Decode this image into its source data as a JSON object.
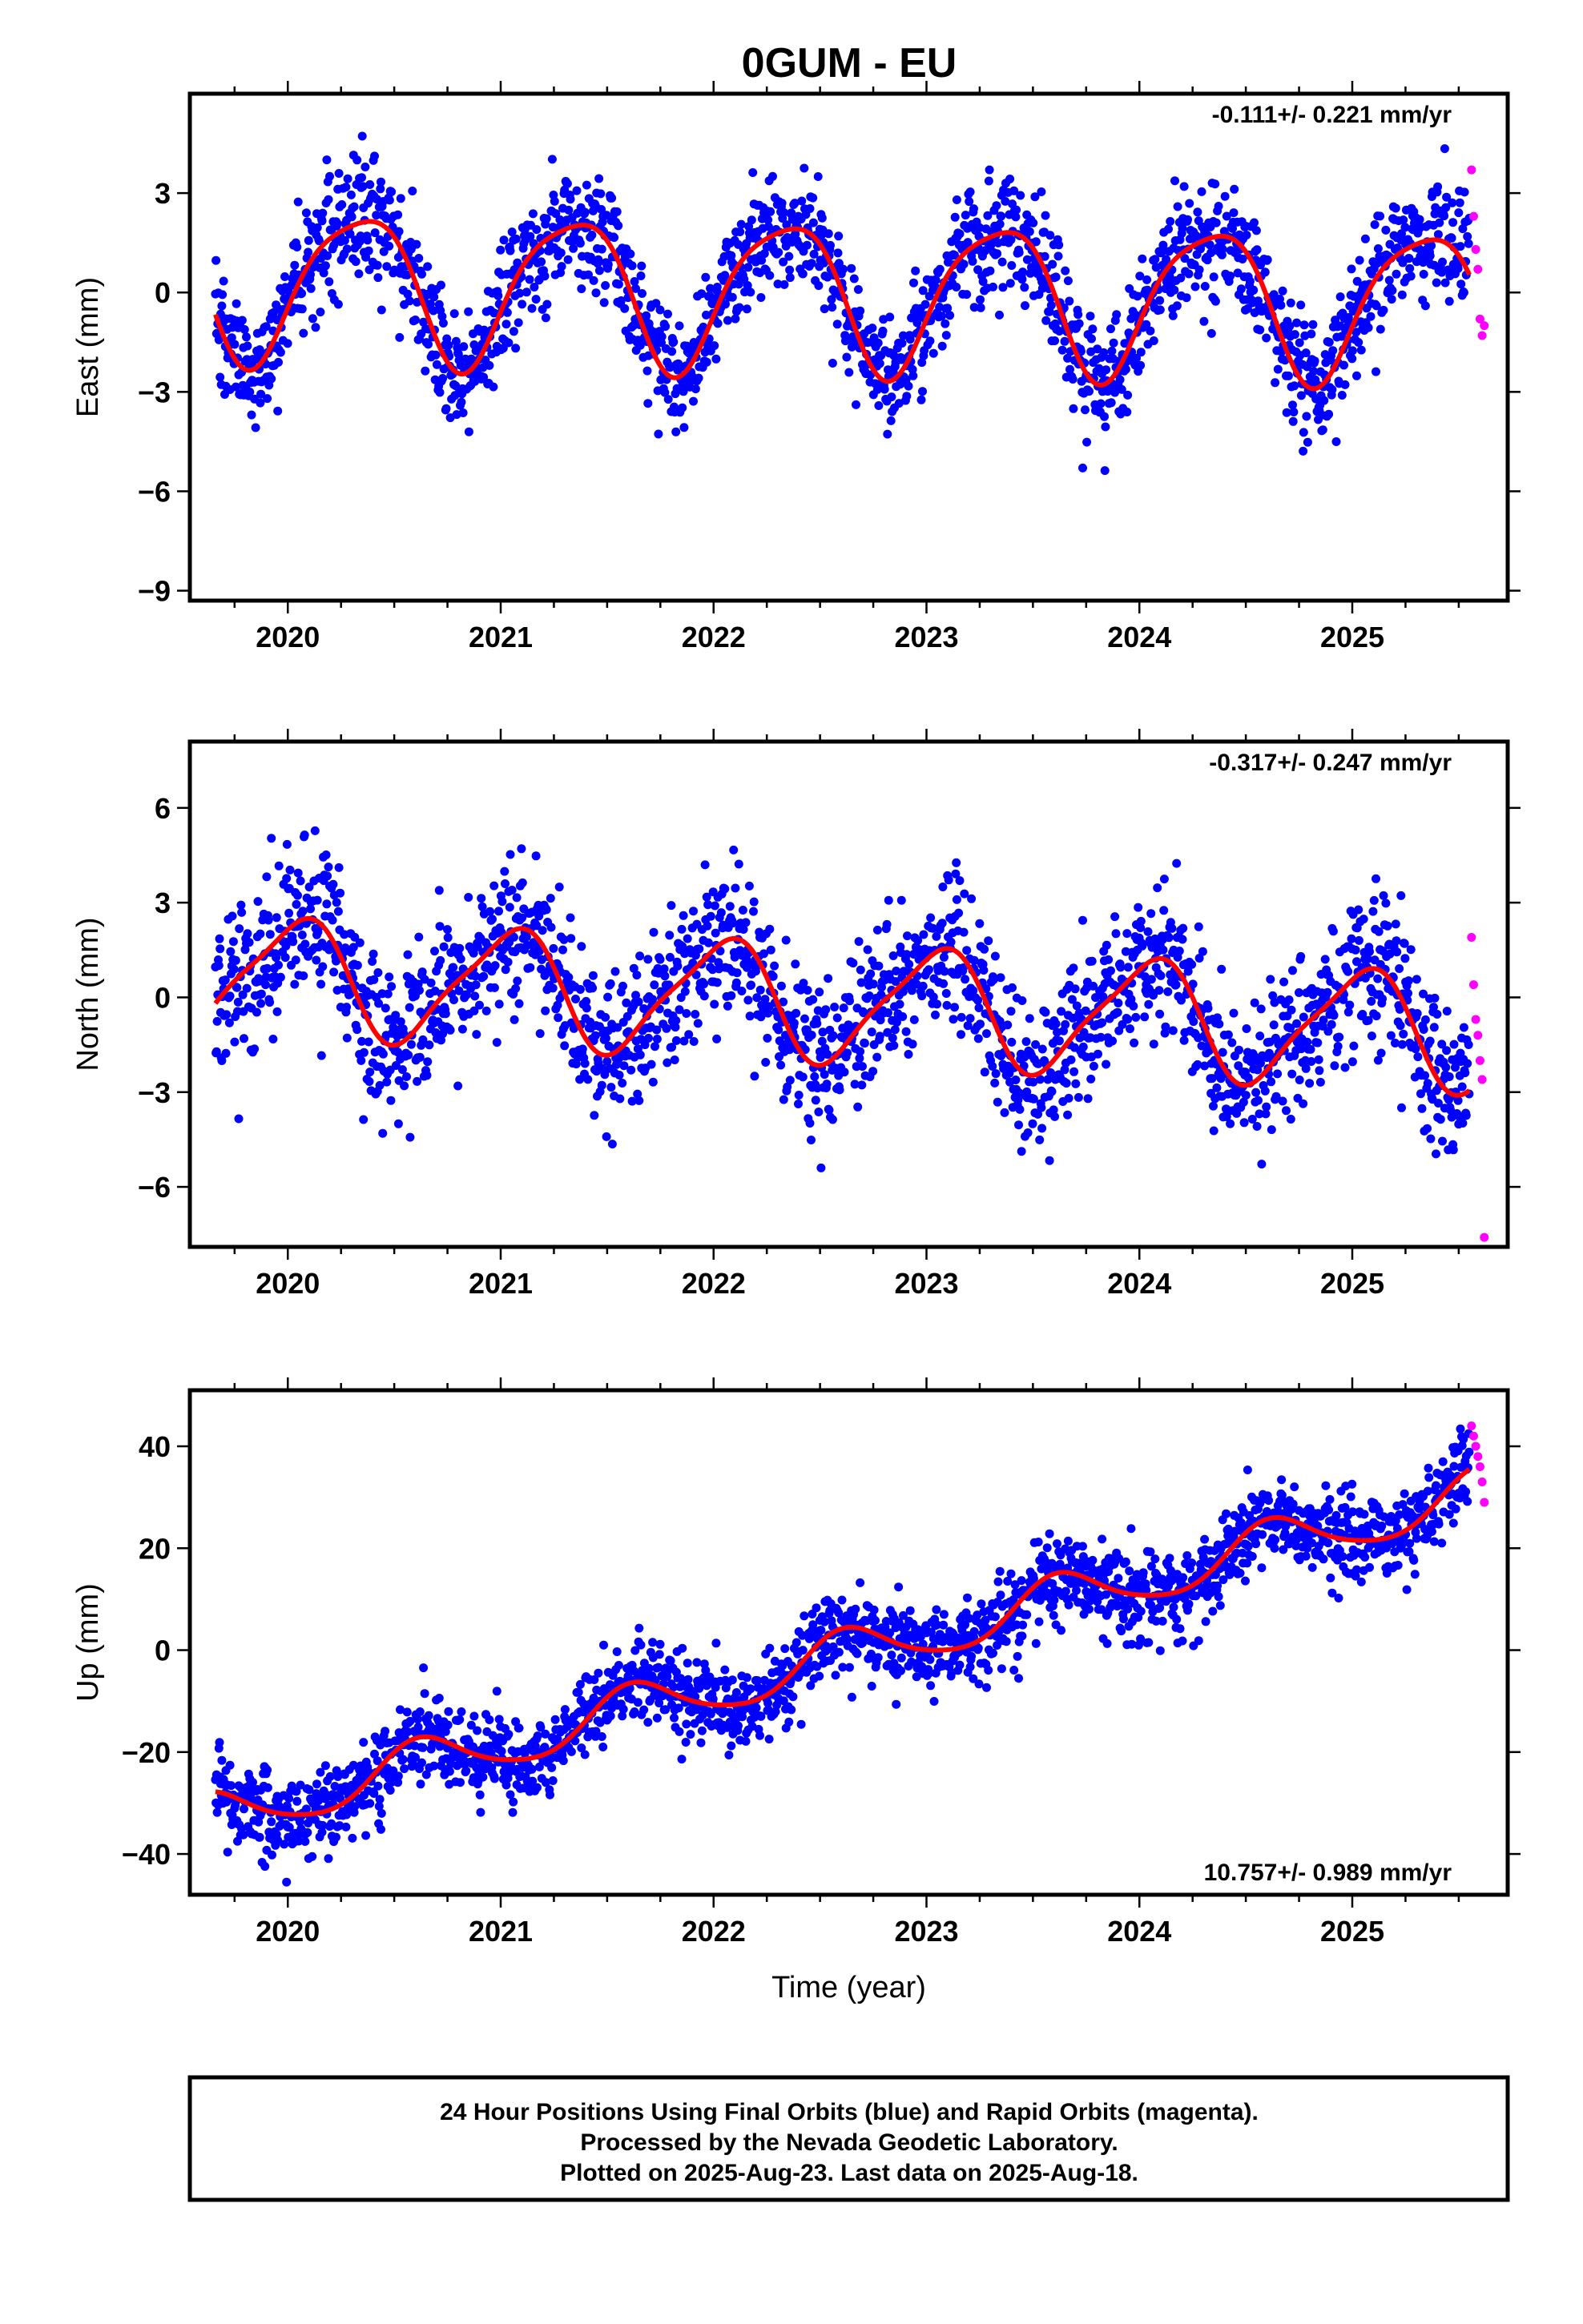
{
  "title": "0GUM - EU",
  "footer": {
    "lines": [
      "24 Hour Positions Using Final Orbits (blue) and Rapid Orbits (magenta).",
      "Processed by the Nevada Geodetic Laboratory.",
      "Plotted on 2025-Aug-23. Last data on 2025-Aug-18."
    ]
  },
  "colors": {
    "final": "#0000ff",
    "rapid": "#ff00ff",
    "model": "#ff0000",
    "frame": "#000000"
  },
  "chart_data": [
    {
      "type": "scatter",
      "panel": "east",
      "ylabel": "East (mm)",
      "xlabel": "",
      "rate_text": "-0.111+/- 0.221 mm/yr",
      "rate_position": "top-right",
      "xlim": [
        2019.54,
        2025.73
      ],
      "ylim": [
        -9.3,
        6.0
      ],
      "xticks": [
        2020,
        2021,
        2022,
        2023,
        2024,
        2025
      ],
      "yticks": [
        -9,
        -6,
        -3,
        0,
        3
      ],
      "ytick_labels": [
        "−9",
        "−6",
        "−3",
        "0",
        "3"
      ],
      "grid": false,
      "series": [
        {
          "series_type": "final-orbit-points",
          "x_range": [
            2019.66,
            2025.55
          ],
          "scatter_sd": 0.9
        },
        {
          "series_type": "rapid-orbit-points",
          "x": [
            2025.56,
            2025.57,
            2025.58,
            2025.59,
            2025.6,
            2025.61,
            2025.62
          ],
          "y": [
            3.7,
            2.3,
            1.3,
            0.7,
            -0.8,
            -1.3,
            -1.0
          ]
        },
        {
          "series_type": "model-fit",
          "offset": 0.0,
          "rate": -0.111,
          "seasonal": {
            "sin1": 1.95,
            "cos1": -1.1,
            "sin2": 0.25,
            "cos2": 0.35
          },
          "t0": 2022.5
        }
      ]
    },
    {
      "type": "scatter",
      "panel": "north",
      "ylabel": "North (mm)",
      "xlabel": "",
      "rate_text": "-0.317+/- 0.247 mm/yr",
      "rate_position": "top-right",
      "xlim": [
        2019.54,
        2025.73
      ],
      "ylim": [
        -7.9,
        8.1
      ],
      "xticks": [
        2020,
        2021,
        2022,
        2023,
        2024,
        2025
      ],
      "yticks": [
        -6,
        -3,
        0,
        3,
        6
      ],
      "ytick_labels": [
        "−6",
        "−3",
        "0",
        "3",
        "6"
      ],
      "grid": false,
      "series": [
        {
          "series_type": "final-orbit-points",
          "x_range": [
            2019.66,
            2025.55
          ],
          "scatter_sd": 1.15
        },
        {
          "series_type": "rapid-orbit-points",
          "x": [
            2025.56,
            2025.57,
            2025.58,
            2025.59,
            2025.6,
            2025.61,
            2025.62
          ],
          "y": [
            1.9,
            0.4,
            -0.7,
            -1.2,
            -2.0,
            -2.6,
            -7.6
          ]
        },
        {
          "series_type": "model-fit",
          "offset": -0.15,
          "rate": -0.317,
          "seasonal": {
            "sin1": 0.45,
            "cos1": 1.75,
            "sin2": 0.3,
            "cos2": -0.25
          },
          "t0": 2022.5
        }
      ]
    },
    {
      "type": "scatter",
      "panel": "up",
      "ylabel": "Up (mm)",
      "xlabel": "Time (year)",
      "rate_text": "10.757+/- 0.989 mm/yr",
      "rate_position": "bottom-right",
      "xlim": [
        2019.54,
        2025.73
      ],
      "ylim": [
        -48,
        51
      ],
      "xticks": [
        2020,
        2021,
        2022,
        2023,
        2024,
        2025
      ],
      "yticks": [
        -40,
        -20,
        0,
        20,
        40
      ],
      "ytick_labels": [
        "−40",
        "−20",
        "0",
        "20",
        "40"
      ],
      "grid": false,
      "series": [
        {
          "series_type": "final-orbit-points",
          "x_range": [
            2019.66,
            2025.55
          ],
          "scatter_sd": 4.2
        },
        {
          "series_type": "rapid-orbit-points",
          "x": [
            2025.56,
            2025.57,
            2025.58,
            2025.59,
            2025.6,
            2025.61,
            2025.62
          ],
          "y": [
            44,
            42,
            40,
            38,
            36,
            33,
            29
          ]
        },
        {
          "series_type": "model-fit",
          "offset": -2.3,
          "rate": 10.757,
          "seasonal": {
            "sin1": -3.4,
            "cos1": -3.4,
            "sin2": 0.6,
            "cos2": 0.4
          },
          "t0": 2022.5
        }
      ]
    }
  ]
}
